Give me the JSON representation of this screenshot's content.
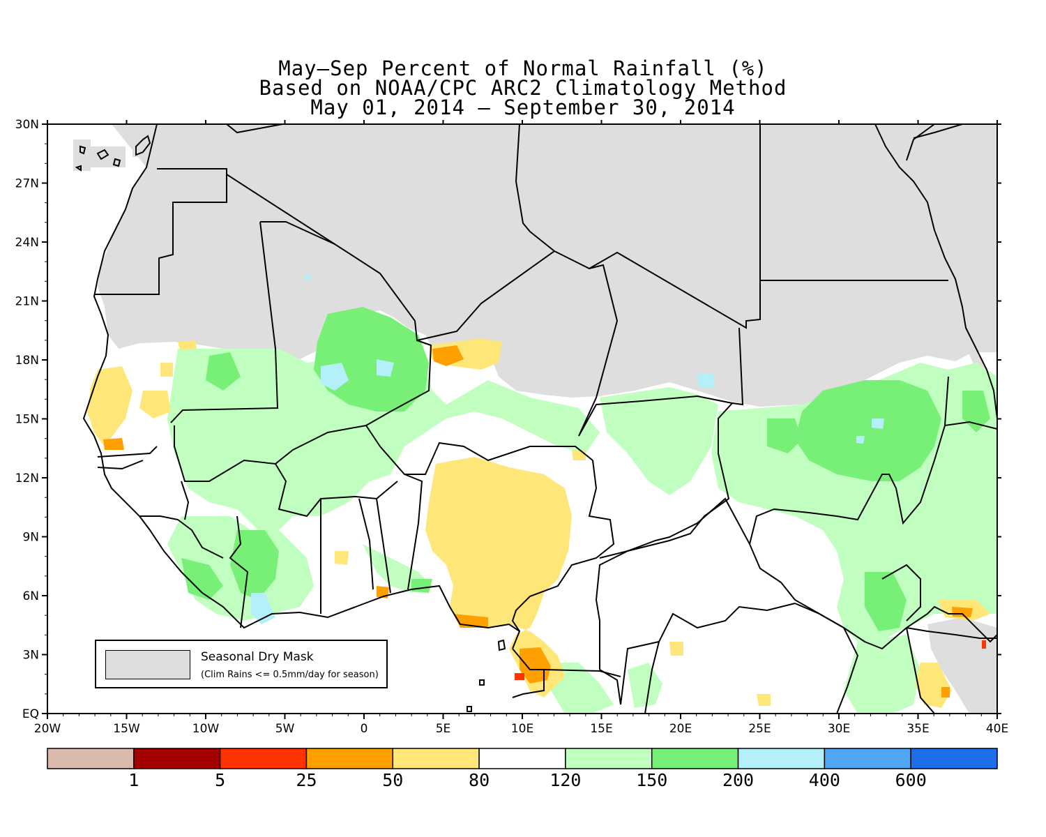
{
  "titles": [
    "May–Sep Percent of Normal Rainfall (%)",
    "Based on NOAA/CPC ARC2 Climatology Method",
    "May 01, 2014 – September 30, 2014"
  ],
  "axes": {
    "lon_ticks": [
      "20W",
      "15W",
      "10W",
      "5W",
      "0",
      "5E",
      "10E",
      "15E",
      "20E",
      "25E",
      "30E",
      "35E",
      "40E"
    ],
    "lat_ticks": [
      "EQ",
      "3N",
      "6N",
      "9N",
      "12N",
      "15N",
      "18N",
      "21N",
      "24N",
      "27N",
      "30N"
    ],
    "lon_range": [
      -20,
      40
    ],
    "lat_range": [
      0,
      30
    ]
  },
  "mask_legend": {
    "title": "Seasonal Dry Mask",
    "subtitle": "(Clim Rains <= 0.5mm/day for season)",
    "color": "#dedede"
  },
  "colorbar": {
    "colors": [
      "#dbb9ad",
      "#a50000",
      "#ff3200",
      "#ffa000",
      "#ffe678",
      "#ffffff",
      "#c0ffc0",
      "#78f078",
      "#b4f0fa",
      "#50a5f5",
      "#1e6eeb"
    ],
    "labels": [
      "1",
      "5",
      "25",
      "50",
      "80",
      "120",
      "150",
      "200",
      "400",
      "600"
    ]
  },
  "colors": {
    "mask": "#dedede",
    "light_green": "#c0ffc0",
    "green": "#78f078",
    "yellow": "#ffe678",
    "orange": "#ffa000",
    "light_blue": "#b4f0fa",
    "red": "#ff3200"
  }
}
